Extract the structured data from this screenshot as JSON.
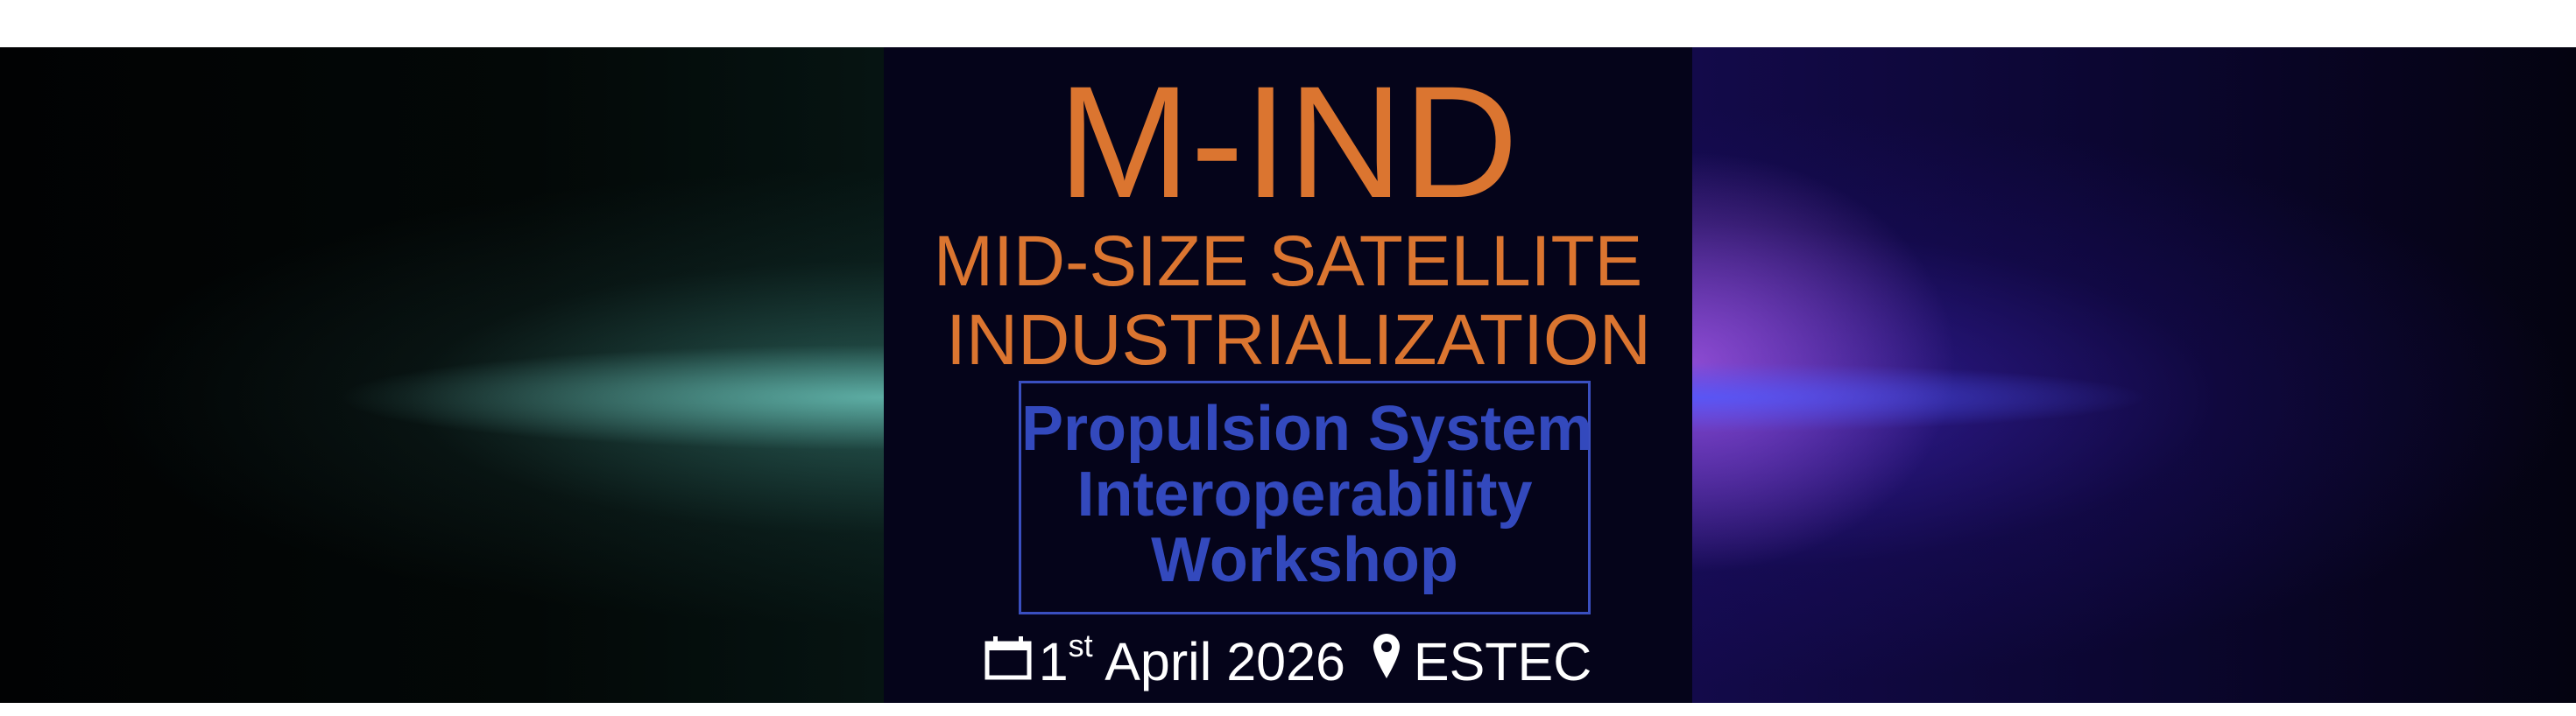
{
  "banner": {
    "acronym": "M-IND",
    "subtitle_line1": "MID-SIZE SATELLITE",
    "subtitle_line2": "INDUSTRIALIZATION",
    "event_lines": [
      "Propulsion System",
      "Interoperability",
      "Workshop"
    ],
    "date_day": "1",
    "date_suffix": "st",
    "date_rest": "April 2026",
    "location": "ESTEC",
    "icons": {
      "date": "calendar-icon",
      "location": "map-pin-icon"
    },
    "colors": {
      "title": "#db7530",
      "event": "#3349bd",
      "panel": "#05041a"
    }
  }
}
